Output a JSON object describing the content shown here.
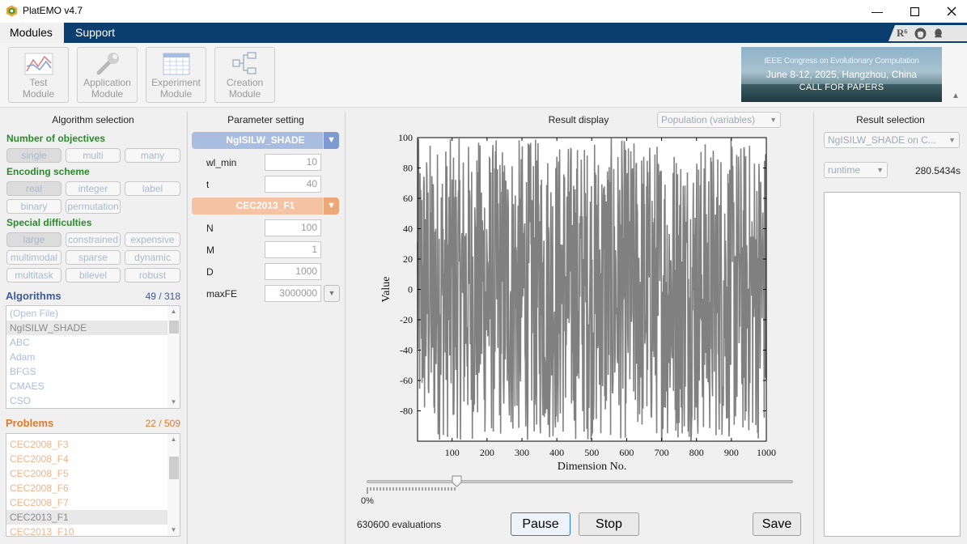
{
  "window": {
    "title": "PlatEMO v4.7"
  },
  "menu": {
    "modules": "Modules",
    "support": "Support",
    "right_icons": [
      "r6-icon",
      "github-icon",
      "qq-icon"
    ],
    "r6_label": "R⁶"
  },
  "toolbar": {
    "buttons": [
      {
        "line1": "Test",
        "line2": "Module"
      },
      {
        "line1": "Application",
        "line2": "Module"
      },
      {
        "line1": "Experiment",
        "line2": "Module"
      },
      {
        "line1": "Creation",
        "line2": "Module"
      }
    ],
    "banner": {
      "line1": "IEEE Congress on Evolutionary Computation",
      "line2": "June 8-12, 2025, Hangzhou, China",
      "line3": "CALL FOR PAPERS"
    }
  },
  "algorithm_selection": {
    "title": "Algorithm selection",
    "objectives_label": "Number of objectives",
    "objectives": [
      "single",
      "multi",
      "many"
    ],
    "encoding_label": "Encoding scheme",
    "encoding": [
      "real",
      "integer",
      "label",
      "binary",
      "permutation"
    ],
    "special_label": "Special difficulties",
    "special": [
      "large",
      "constrained",
      "expensive",
      "multimodal",
      "sparse",
      "dynamic",
      "multitask",
      "bilevel",
      "robust"
    ],
    "algorithms_label": "Algorithms",
    "algorithms_count": "49 / 318",
    "algorithms": [
      "(Open File)",
      "NgISILW_SHADE",
      "ABC",
      "Adam",
      "BFGS",
      "CMAES",
      "CSO"
    ],
    "problems_label": "Problems",
    "problems_count": "22 / 509",
    "problems": [
      "CEC2008_F3",
      "CEC2008_F4",
      "CEC2008_F5",
      "CEC2008_F6",
      "CEC2008_F7",
      "CEC2013_F1",
      "CEC2013_F10"
    ]
  },
  "parameter_setting": {
    "title": "Parameter setting",
    "algorithm": "NgISILW_SHADE",
    "algorithm_params": [
      {
        "name": "wl_min",
        "value": "10"
      },
      {
        "name": "t",
        "value": "40"
      }
    ],
    "problem": "CEC2013_F1",
    "problem_params": [
      {
        "name": "N",
        "value": "100"
      },
      {
        "name": "M",
        "value": "1"
      },
      {
        "name": "D",
        "value": "1000"
      },
      {
        "name": "maxFE",
        "value": "3000000"
      }
    ]
  },
  "result_display": {
    "title": "Result display",
    "view_select": "Population (variables)",
    "slider_label": "0%",
    "evaluations": "630600 evaluations",
    "pause": "Pause",
    "stop": "Stop",
    "save": "Save"
  },
  "result_selection": {
    "title": "Result selection",
    "run_select": "NgISILW_SHADE on C...",
    "metric_select": "runtime",
    "metric_value": "280.5434s"
  },
  "colors": {
    "menubar": "#0b3d6e",
    "objectives_green": "#2b8a2b",
    "algorithms_blue": "#3b5a9a",
    "problems_orange": "#e07a2a",
    "alg_bar": "#a9bde0",
    "prob_bar": "#f5c3a3",
    "plot_line": "#808080"
  },
  "chart_data": {
    "type": "line",
    "xlabel": "Dimension No.",
    "ylabel": "Value",
    "xlim": [
      1,
      1000
    ],
    "ylim": [
      -100,
      100
    ],
    "xticks": [
      100,
      200,
      300,
      400,
      500,
      600,
      700,
      800,
      900,
      1000
    ],
    "yticks": [
      -80,
      -60,
      -40,
      -20,
      0,
      20,
      40,
      60,
      80,
      100
    ],
    "series": [
      {
        "description_values": "1000 decision variables spanning approximately -100 to 100 (dense noisy population plot)",
        "min": -100,
        "max": 100,
        "n": 1000
      }
    ]
  }
}
